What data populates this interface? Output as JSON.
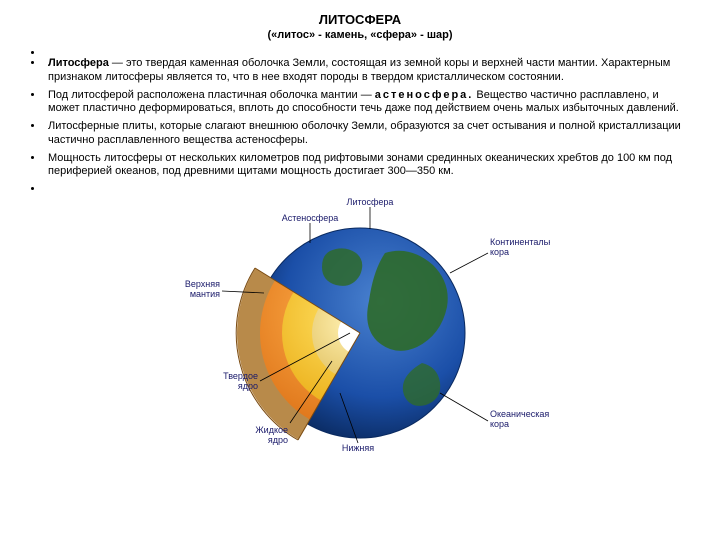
{
  "title": "ЛИТОСФЕРА",
  "subtitle": "(«литос» - камень, «сфера» - шар)",
  "bullets": {
    "b1_lead": "Литосфера",
    "b1_rest": " — это твердая каменная оболочка Земли, состоящая из земной коры и верхней части мантии. Характерным признаком литосферы является то, что в нее входят породы в твердом кристаллическом состоянии.",
    "b2_a": "Под литосферой расположена пластичная оболочка мантии — ",
    "b2_bold": "астеносфера.",
    "b2_b": " Вещество частично расплавлено, и может пластично деформироваться, вплоть до способности течь даже под действием очень малых избыточных давлений.",
    "b3": "Литосферные плиты, которые слагают внешнюю оболочку Земли, образуются за счет остывания и полной кристаллизации частично расплавленного вещества астеносферы.",
    "b4": "Мощность литосферы от нескольких километров под рифтовыми зонами срединных океанических хребтов до 100 км под периферией океанов, под древними щитами мощность достигает 300—350 км."
  },
  "diagram": {
    "labels": {
      "lithosphere": "Литосфера",
      "asthenosphere": "Астеносфера",
      "continental_crust": "Континентальная\nкора",
      "upper_mantle": "Верхняя\nмантия",
      "solid_core": "Твердое\nядро",
      "liquid_core": "Жидкое\nядро",
      "lower_mantle": "Нижняя\nмантия",
      "oceanic_crust": "Океаническая\nкора"
    },
    "colors": {
      "ocean": "#1b4fa8",
      "ocean_light": "#3a6fc8",
      "land": "#2e6a2a",
      "crust_edge": "#b88a4a",
      "upper_mantle": "#f08a24",
      "lower_mantle": "#f6c21a",
      "liquid_core": "#f0d078",
      "solid_core": "#ffffff",
      "label": "#1a1a6a"
    }
  }
}
